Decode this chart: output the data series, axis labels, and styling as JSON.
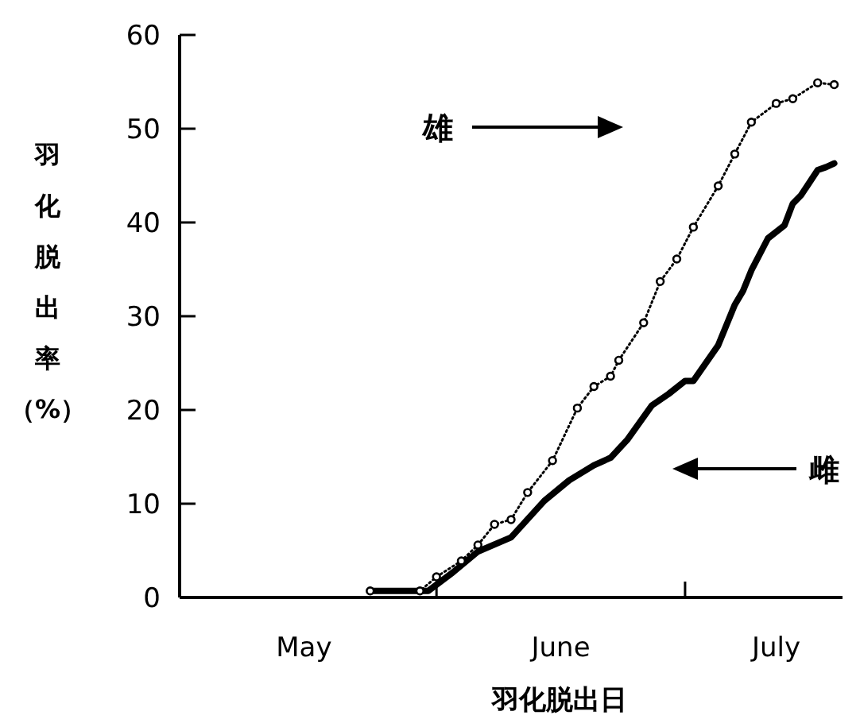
{
  "chart_data": {
    "type": "line",
    "ylabel": "羽化脱出率（%）",
    "xlabel": "羽化脱出日",
    "xlim": [
      "--05-01",
      "--07-20"
    ],
    "xticks": [
      {
        "value": "--05-16",
        "label": "May"
      },
      {
        "value": "--06-01",
        "label": null
      },
      {
        "value": "--06-16",
        "label": "June"
      },
      {
        "value": "--07-01",
        "label": null
      },
      {
        "value": "--07-12",
        "label": "July"
      }
    ],
    "ylim": [
      0,
      60
    ],
    "yticks": [
      0,
      10,
      20,
      30,
      40,
      50,
      60
    ],
    "grid": false,
    "series": [
      {
        "color": "#000000",
        "marker": "circle",
        "line_style": "dotted",
        "x": [
          "--05-24",
          "--05-30",
          "--06-01",
          "--06-04",
          "--06-06",
          "--06-08",
          "--06-10",
          "--06-12",
          "--06-15",
          "--06-18",
          "--06-20",
          "--06-22",
          "--06-23",
          "--06-26",
          "--06-28",
          "--06-30",
          "--07-02",
          "--07-05",
          "--07-07",
          "--07-09",
          "--07-12",
          "--07-14",
          "--07-17",
          "--07-19"
        ],
        "values": [
          0.7,
          0.7,
          2.2,
          3.9,
          5.6,
          7.8,
          8.3,
          11.2,
          14.6,
          20.2,
          22.5,
          23.6,
          25.3,
          29.3,
          33.7,
          36.1,
          39.5,
          43.9,
          47.3,
          50.7,
          52.7,
          53.2,
          54.9,
          54.7
        ]
      },
      {
        "color": "#000000",
        "marker": "none",
        "line_style": "solid",
        "x": [
          "--05-24",
          "--05-31",
          "--06-03",
          "--06-06",
          "--06-10",
          "--06-14",
          "--06-17",
          "--06-20",
          "--06-22",
          "--06-24",
          "--06-27",
          "--06-29",
          "--07-01",
          "--07-02",
          "--07-05",
          "--07-07",
          "--07-08",
          "--07-09",
          "--07-11",
          "--07-13",
          "--07-14",
          "--07-15",
          "--07-17",
          "--07-18",
          "--07-19"
        ],
        "values": [
          0.7,
          0.7,
          2.7,
          4.9,
          6.4,
          10.3,
          12.5,
          14.1,
          14.9,
          16.8,
          20.5,
          21.7,
          23.1,
          23.1,
          26.9,
          31.2,
          32.7,
          34.9,
          38.3,
          39.7,
          42.0,
          42.9,
          45.6,
          45.9,
          46.3
        ]
      }
    ],
    "annotations": [
      "雄",
      "雌"
    ]
  }
}
